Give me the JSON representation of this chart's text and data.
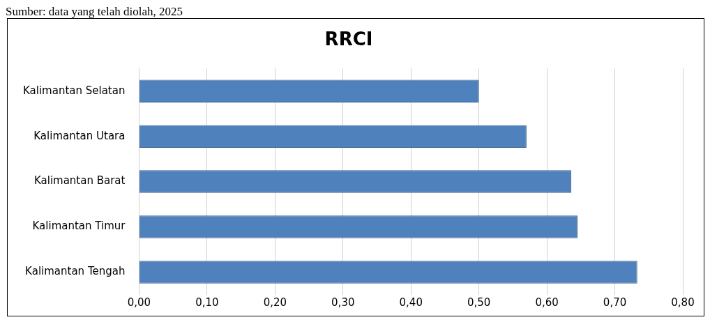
{
  "chart_data": {
    "type": "bar",
    "orientation": "horizontal",
    "title": "RRCI",
    "annotations": [
      "Sumber: data yang telah diolah, 2025"
    ],
    "categories": [
      "Kalimantan Selatan",
      "Kalimantan Utara",
      "Kalimantan Barat",
      "Kalimantan Timur",
      "Kalimantan Tengah"
    ],
    "values": [
      0.5,
      0.57,
      0.636,
      0.645,
      0.733
    ],
    "color": "#4f81bd",
    "xlim": [
      0,
      0.8
    ],
    "xticks": [
      {
        "value": 0,
        "label": "0,00"
      },
      {
        "value": 0.1,
        "label": "0,10"
      },
      {
        "value": 0.2,
        "label": "0,20"
      },
      {
        "value": 0.3,
        "label": "0,30"
      },
      {
        "value": 0.4,
        "label": "0,40"
      },
      {
        "value": 0.5,
        "label": "0,50"
      },
      {
        "value": 0.6,
        "label": "0,60"
      },
      {
        "value": 0.7,
        "label": "0,70"
      },
      {
        "value": 0.8,
        "label": "0,80"
      }
    ],
    "grid": "x"
  }
}
